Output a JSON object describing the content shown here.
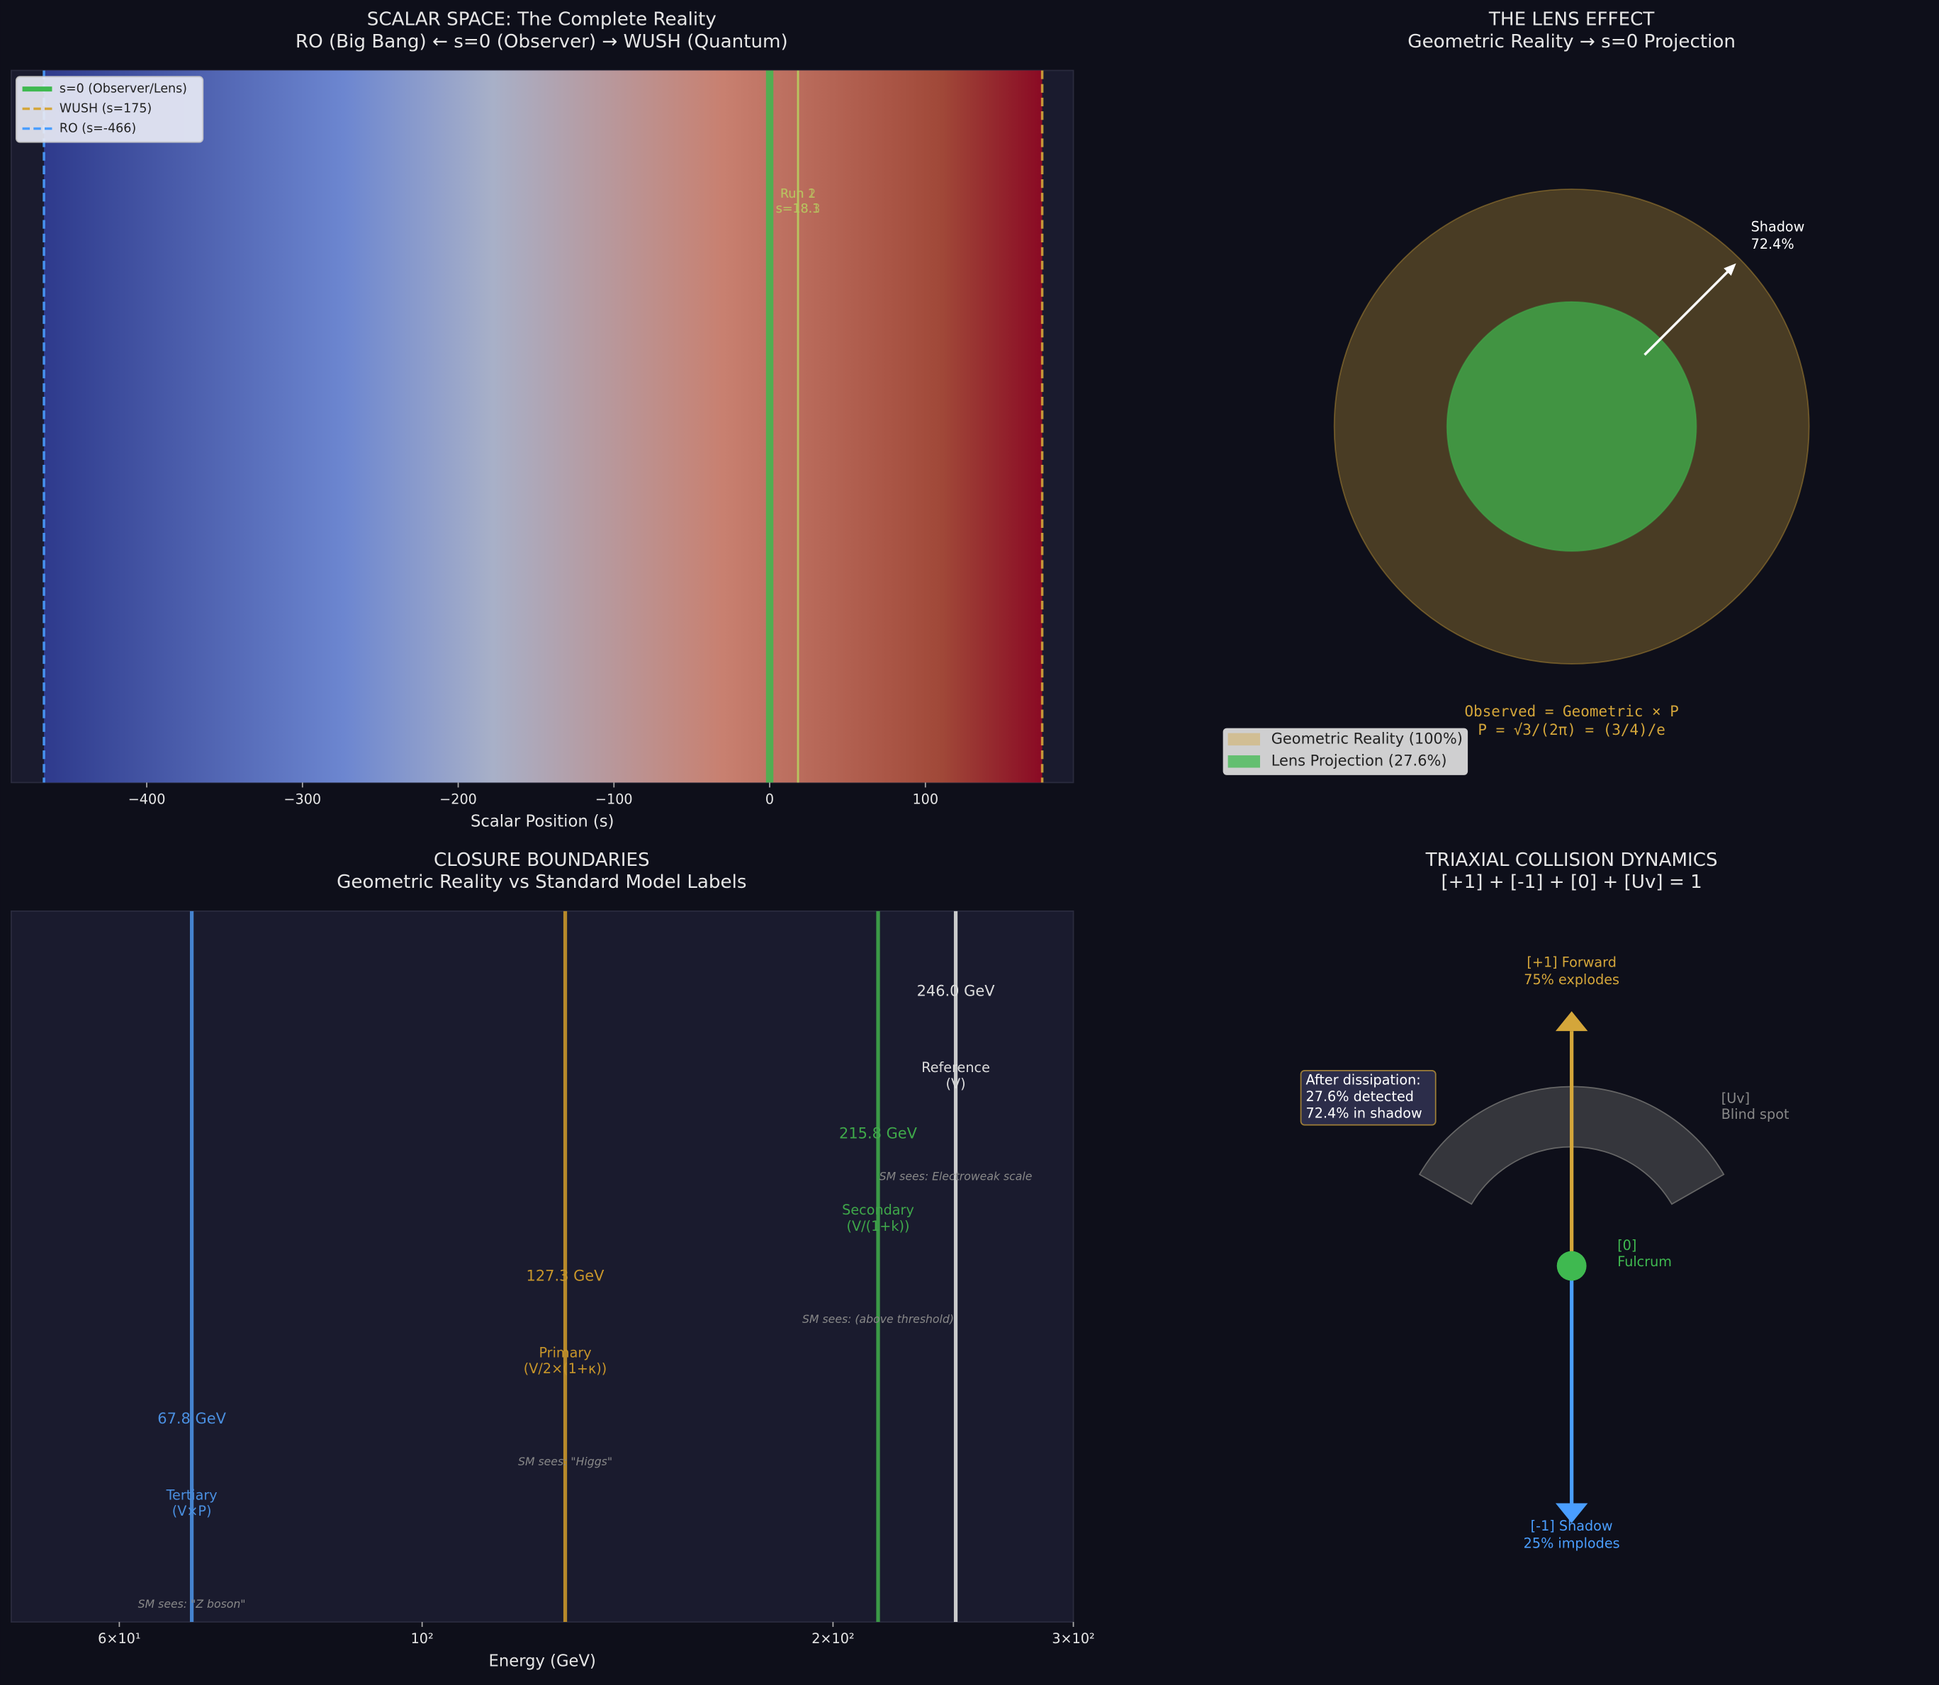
{
  "chart_data": [
    {
      "type": "vline",
      "title": "SCALAR SPACE: The Complete Reality",
      "subtitle": "RO (Big Bang) ← s=0 (Observer) → WUSH (Quantum)",
      "xlabel": "Scalar Position (s)",
      "xlim": [
        -487,
        195
      ],
      "xticks": [
        {
          "value": -400,
          "label": "−400"
        },
        {
          "value": -300,
          "label": "−300"
        },
        {
          "value": -200,
          "label": "−200"
        },
        {
          "value": -100,
          "label": "−100"
        },
        0,
        100
      ],
      "background": "gradient",
      "legend": "upper left",
      "lines": {
        "names": [
          "s=0 (Observer/Lens)",
          "WUSH (s=175)",
          "RO (s=-466)"
        ],
        "values": [
          0,
          175,
          -466
        ],
        "colors": [
          "#3fb950",
          "#d4a63a",
          "#4a9eff"
        ],
        "styles": [
          "solid",
          "dashed",
          "dashed"
        ]
      },
      "markers": {
        "names": [
          "Run 1",
          "Run 2"
        ],
        "values": [
          18.1,
          18.3
        ],
        "value_labels": [
          "s=18.1",
          "s=18.3"
        ],
        "color": "#b8c860"
      }
    },
    {
      "type": "circle",
      "title": "THE LENS EFFECT",
      "subtitle": "Geometric Reality → s=0 Projection",
      "circles": {
        "names": [
          "Geometric Reality (100%)",
          "Lens Projection (27.6%)"
        ],
        "values": [
          100,
          27.6
        ],
        "colors": [
          "#d4a63a",
          "#3fb950"
        ]
      },
      "annotation": {
        "label": "Shadow",
        "value": 72.4,
        "value_label": "72.4%"
      },
      "notes": [
        "Observed = Geometric × P",
        "P = √3/(2π) = (3/4)/e"
      ]
    },
    {
      "type": "vline",
      "title": "CLOSURE BOUNDARIES",
      "subtitle": "Geometric Reality vs Standard Model Labels",
      "xlabel": "Energy (GeV)",
      "xscale": "log",
      "xlim": [
        50,
        300
      ],
      "xticks": [
        {
          "value": 60,
          "label": "6×10¹"
        },
        {
          "value": 100,
          "label": "10²"
        },
        {
          "value": 200,
          "label": "2×10²"
        },
        {
          "value": 300,
          "label": "3×10²"
        }
      ],
      "lines": {
        "names": [
          "Tertiary",
          "Primary",
          "Secondary",
          "Reference"
        ],
        "formulas": [
          "(V×P)",
          "(V/2×(1+κ))",
          "(V/(1+k))",
          "(V)"
        ],
        "values": [
          67.8,
          127.3,
          215.8,
          246.0
        ],
        "value_labels": [
          "67.8 GeV",
          "127.3 GeV",
          "215.8 GeV",
          "246.0 GeV"
        ],
        "sm_labels": [
          "SM sees: \"Z boson\"",
          "SM sees: \"Higgs\"",
          "SM sees: (above threshold)",
          "SM sees: Electroweak scale"
        ],
        "colors": [
          "#4a8fe0",
          "#c8962a",
          "#3fa84a",
          "#dddddd"
        ],
        "styles": [
          "solid",
          "solid",
          "solid",
          "solid"
        ]
      }
    },
    {
      "type": "diagram",
      "title": "TRIAXIAL COLLISION DYNAMICS",
      "subtitle": "[+1] + [-1] + [0] + [Uv] = 1",
      "up": {
        "label": "[+1] Forward",
        "note": "75% explodes"
      },
      "down": {
        "label": "[-1] Shadow",
        "note": "25% implodes"
      },
      "center": {
        "label": "[0]",
        "note": "Fulcrum"
      },
      "side": {
        "label": "[Uv]",
        "note": "Blind spot"
      },
      "callout": [
        "After dissipation:",
        "27.6% detected",
        "72.4% in shadow"
      ]
    }
  ]
}
